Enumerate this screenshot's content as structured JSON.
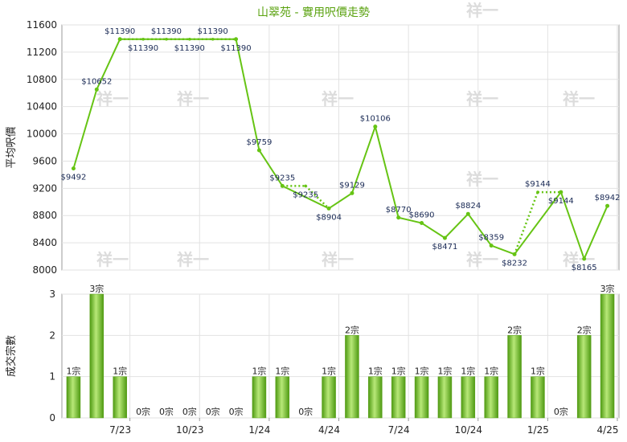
{
  "chart_data": [
    {
      "type": "line",
      "title": "山翠苑 - 實用呎價走勢",
      "ylabel": "平均呎價",
      "ylim": [
        8000,
        11600
      ],
      "yticks": [
        8000,
        8400,
        8800,
        9200,
        9600,
        10000,
        10400,
        10800,
        11200,
        11600
      ],
      "x_tick_labels": [
        "7/23",
        "10/23",
        "1/24",
        "4/24",
        "7/24",
        "10/24",
        "1/25",
        "4/25"
      ],
      "series": [
        {
          "values": [
            9492,
            10652,
            11390,
            null,
            null,
            null,
            null,
            11390,
            9759,
            9235,
            null,
            8904,
            9129,
            10106,
            8770,
            8690,
            8471,
            8824,
            8359,
            8232,
            null,
            9144,
            8165,
            8942
          ],
          "labels": [
            "$9492",
            "$10652",
            "$11390",
            "$11390",
            "$11390",
            "$11390",
            "$11390",
            "$11390",
            "$9759",
            "$9235",
            "$9235",
            "$8904",
            "$9129",
            "$10106",
            "$8770",
            "$8690",
            "$8471",
            "$8824",
            "$8359",
            "$8232",
            "$9144",
            "$9144",
            "$8165",
            "$8942"
          ]
        }
      ],
      "carry_forward_values": [
        null,
        null,
        null,
        11390,
        11390,
        11390,
        11390,
        null,
        null,
        null,
        9235,
        null,
        null,
        null,
        null,
        null,
        null,
        null,
        null,
        null,
        9144,
        null,
        null,
        null
      ],
      "colors": {
        "line": "#66c414",
        "dotted": "#66c414"
      },
      "grid": true
    },
    {
      "type": "bar",
      "ylabel": "成交宗數",
      "ylim": [
        0,
        3
      ],
      "yticks": [
        0,
        1,
        2,
        3
      ],
      "x_tick_labels": [
        "7/23",
        "10/23",
        "1/24",
        "4/24",
        "7/24",
        "10/24",
        "1/25",
        "4/25"
      ],
      "values": [
        1,
        3,
        1,
        0,
        0,
        0,
        0,
        0,
        1,
        1,
        0,
        1,
        2,
        1,
        1,
        1,
        1,
        1,
        1,
        2,
        1,
        0,
        2,
        3
      ],
      "labels": [
        "1宗",
        "3宗",
        "1宗",
        "0宗",
        "0宗",
        "0宗",
        "0宗",
        "0宗",
        "1宗",
        "1宗",
        "0宗",
        "1宗",
        "2宗",
        "1宗",
        "1宗",
        "1宗",
        "1宗",
        "1宗",
        "1宗",
        "2宗",
        "1宗",
        "0宗",
        "2宗",
        "3宗"
      ],
      "colors": {
        "bar": "#7cc52b"
      },
      "grid": true
    }
  ],
  "watermark": "祥一"
}
